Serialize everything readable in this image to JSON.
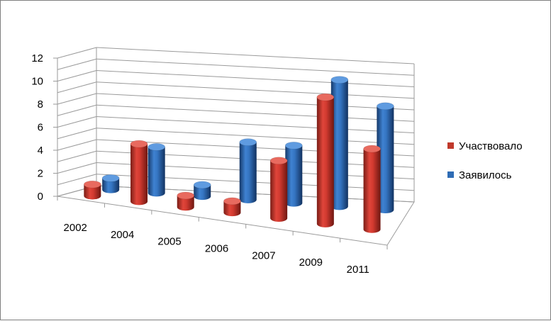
{
  "chart_data": {
    "type": "bar",
    "style": "3d-cylinder",
    "categories": [
      "2002",
      "2004",
      "2005",
      "2006",
      "2007",
      "2009",
      "2011"
    ],
    "series": [
      {
        "name": "Участвовало",
        "color": "#c0392b",
        "values": [
          1,
          5,
          1,
          1,
          5,
          11,
          7
        ]
      },
      {
        "name": "Заявилось",
        "color": "#2f6cb5",
        "values": [
          1,
          4,
          1,
          5,
          5,
          11,
          9
        ]
      }
    ],
    "y_ticks": [
      "0",
      "2",
      "4",
      "6",
      "8",
      "10",
      "12"
    ],
    "ylim": [
      0,
      12
    ],
    "grid": true,
    "legend_position": "right"
  }
}
